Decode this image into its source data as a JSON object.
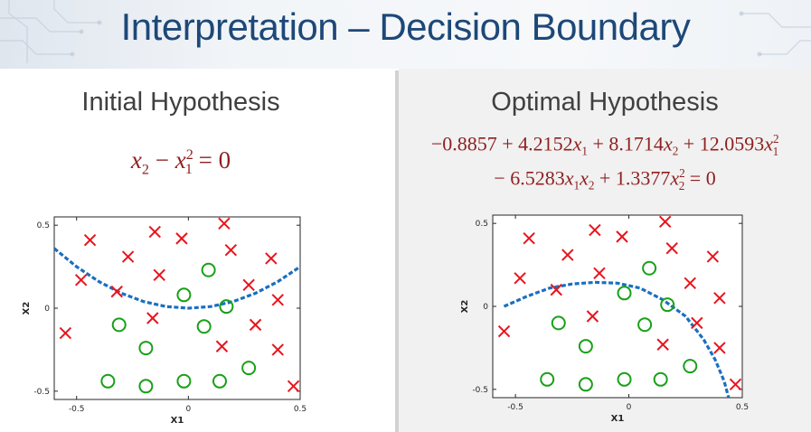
{
  "slide": {
    "title": "Interpretation – Decision Boundary"
  },
  "left": {
    "title": "Initial Hypothesis",
    "equation": {
      "lhs_var": "x",
      "lhs_sub": "2",
      "minus": " − ",
      "rhs_var": "x",
      "rhs_sub": "1",
      "rhs_sup": "2",
      "equals_zero": " = 0"
    }
  },
  "right": {
    "title": "Optimal Hypothesis",
    "equation_line1": {
      "t0": "−0.8857 + 4.2152",
      "t1": " + 8.1714",
      "t2": " + 12.0593",
      "x": "x",
      "s1": "1",
      "s2": "2",
      "sq": "2"
    },
    "equation_line2": {
      "t0": "− 6.5283",
      "t1": " + 1.3377",
      "x": "x",
      "s1": "1",
      "s2": "2",
      "sq": "2",
      "eq": " = 0"
    }
  },
  "colors": {
    "title": "#1d4878",
    "equation": "#8e1f1f",
    "cross": "#e8141c",
    "circle": "#18a018",
    "boundary": "#1a6fc0"
  },
  "chart_data": [
    {
      "type": "scatter",
      "title": "",
      "xlabel": "X1",
      "ylabel": "X2",
      "xlim": [
        -0.6,
        0.5
      ],
      "ylim": [
        -0.55,
        0.55
      ],
      "xticks": [
        -0.5,
        0,
        0.5
      ],
      "yticks": [
        -0.5,
        0,
        0.5
      ],
      "xtick_labels": [
        "-0.5",
        "0",
        "0.5"
      ],
      "ytick_labels": [
        "-0.5",
        "0",
        "0.5"
      ],
      "grid": false,
      "series": [
        {
          "marker": "x",
          "color": "#e8141c",
          "points": [
            [
              -0.44,
              0.41
            ],
            [
              -0.27,
              0.31
            ],
            [
              -0.15,
              0.46
            ],
            [
              -0.03,
              0.42
            ],
            [
              0.16,
              0.51
            ],
            [
              0.19,
              0.35
            ],
            [
              0.37,
              0.3
            ],
            [
              -0.48,
              0.17
            ],
            [
              -0.32,
              0.1
            ],
            [
              -0.13,
              0.2
            ],
            [
              0.27,
              0.14
            ],
            [
              0.4,
              0.05
            ],
            [
              -0.55,
              -0.15
            ],
            [
              -0.16,
              -0.06
            ],
            [
              0.3,
              -0.1
            ],
            [
              0.15,
              -0.23
            ],
            [
              0.4,
              -0.25
            ],
            [
              0.47,
              -0.47
            ]
          ]
        },
        {
          "marker": "o",
          "color": "#18a018",
          "points": [
            [
              0.09,
              0.23
            ],
            [
              -0.02,
              0.08
            ],
            [
              0.17,
              0.01
            ],
            [
              -0.31,
              -0.1
            ],
            [
              0.07,
              -0.11
            ],
            [
              -0.19,
              -0.24
            ],
            [
              -0.36,
              -0.44
            ],
            [
              -0.19,
              -0.47
            ],
            [
              -0.02,
              -0.44
            ],
            [
              0.14,
              -0.44
            ],
            [
              0.27,
              -0.36
            ]
          ]
        },
        {
          "marker": "dashed-line",
          "name": "",
          "color": "#1a6fc0",
          "equation": "x2 - x1^2 = 0",
          "points": [
            [
              -0.6,
              0.36
            ],
            [
              -0.5,
              0.25
            ],
            [
              -0.4,
              0.16
            ],
            [
              -0.3,
              0.09
            ],
            [
              -0.2,
              0.04
            ],
            [
              -0.1,
              0.01
            ],
            [
              0.0,
              0.0
            ],
            [
              0.1,
              0.01
            ],
            [
              0.2,
              0.04
            ],
            [
              0.3,
              0.09
            ],
            [
              0.4,
              0.16
            ],
            [
              0.5,
              0.25
            ]
          ]
        }
      ]
    },
    {
      "type": "scatter",
      "title": "",
      "xlabel": "X1",
      "ylabel": "X2",
      "xlim": [
        -0.6,
        0.5
      ],
      "ylim": [
        -0.55,
        0.55
      ],
      "xticks": [
        -0.5,
        0,
        0.5
      ],
      "yticks": [
        -0.5,
        0,
        0.5
      ],
      "xtick_labels": [
        "-0.5",
        "0",
        "0.5"
      ],
      "ytick_labels": [
        "-0.5",
        "0",
        "0.5"
      ],
      "grid": false,
      "series": [
        {
          "marker": "x",
          "color": "#e8141c",
          "points": [
            [
              -0.44,
              0.41
            ],
            [
              -0.27,
              0.31
            ],
            [
              -0.15,
              0.46
            ],
            [
              -0.03,
              0.42
            ],
            [
              0.16,
              0.51
            ],
            [
              0.19,
              0.35
            ],
            [
              0.37,
              0.3
            ],
            [
              -0.48,
              0.17
            ],
            [
              -0.32,
              0.1
            ],
            [
              -0.13,
              0.2
            ],
            [
              0.27,
              0.14
            ],
            [
              0.4,
              0.05
            ],
            [
              -0.55,
              -0.15
            ],
            [
              -0.16,
              -0.06
            ],
            [
              0.3,
              -0.1
            ],
            [
              0.15,
              -0.23
            ],
            [
              0.4,
              -0.25
            ],
            [
              0.47,
              -0.47
            ]
          ]
        },
        {
          "marker": "o",
          "color": "#18a018",
          "points": [
            [
              0.09,
              0.23
            ],
            [
              -0.02,
              0.08
            ],
            [
              0.17,
              0.01
            ],
            [
              -0.31,
              -0.1
            ],
            [
              0.07,
              -0.11
            ],
            [
              -0.19,
              -0.24
            ],
            [
              -0.36,
              -0.44
            ],
            [
              -0.19,
              -0.47
            ],
            [
              -0.02,
              -0.44
            ],
            [
              0.14,
              -0.44
            ],
            [
              0.27,
              -0.36
            ]
          ]
        },
        {
          "marker": "dashed-line",
          "name": "",
          "color": "#1a6fc0",
          "equation": "-0.8857 + 4.2152x1 + 8.1714x2 + 12.0593x1^2 - 6.5283x1x2 + 1.3377x2^2 = 0",
          "points": [
            [
              -0.55,
              0.0
            ],
            [
              -0.45,
              0.06
            ],
            [
              -0.35,
              0.11
            ],
            [
              -0.25,
              0.135
            ],
            [
              -0.15,
              0.145
            ],
            [
              -0.05,
              0.14
            ],
            [
              0.05,
              0.11
            ],
            [
              0.15,
              0.04
            ],
            [
              0.25,
              -0.06
            ],
            [
              0.33,
              -0.2
            ],
            [
              0.38,
              -0.32
            ],
            [
              0.42,
              -0.45
            ],
            [
              0.44,
              -0.55
            ]
          ]
        }
      ]
    }
  ]
}
